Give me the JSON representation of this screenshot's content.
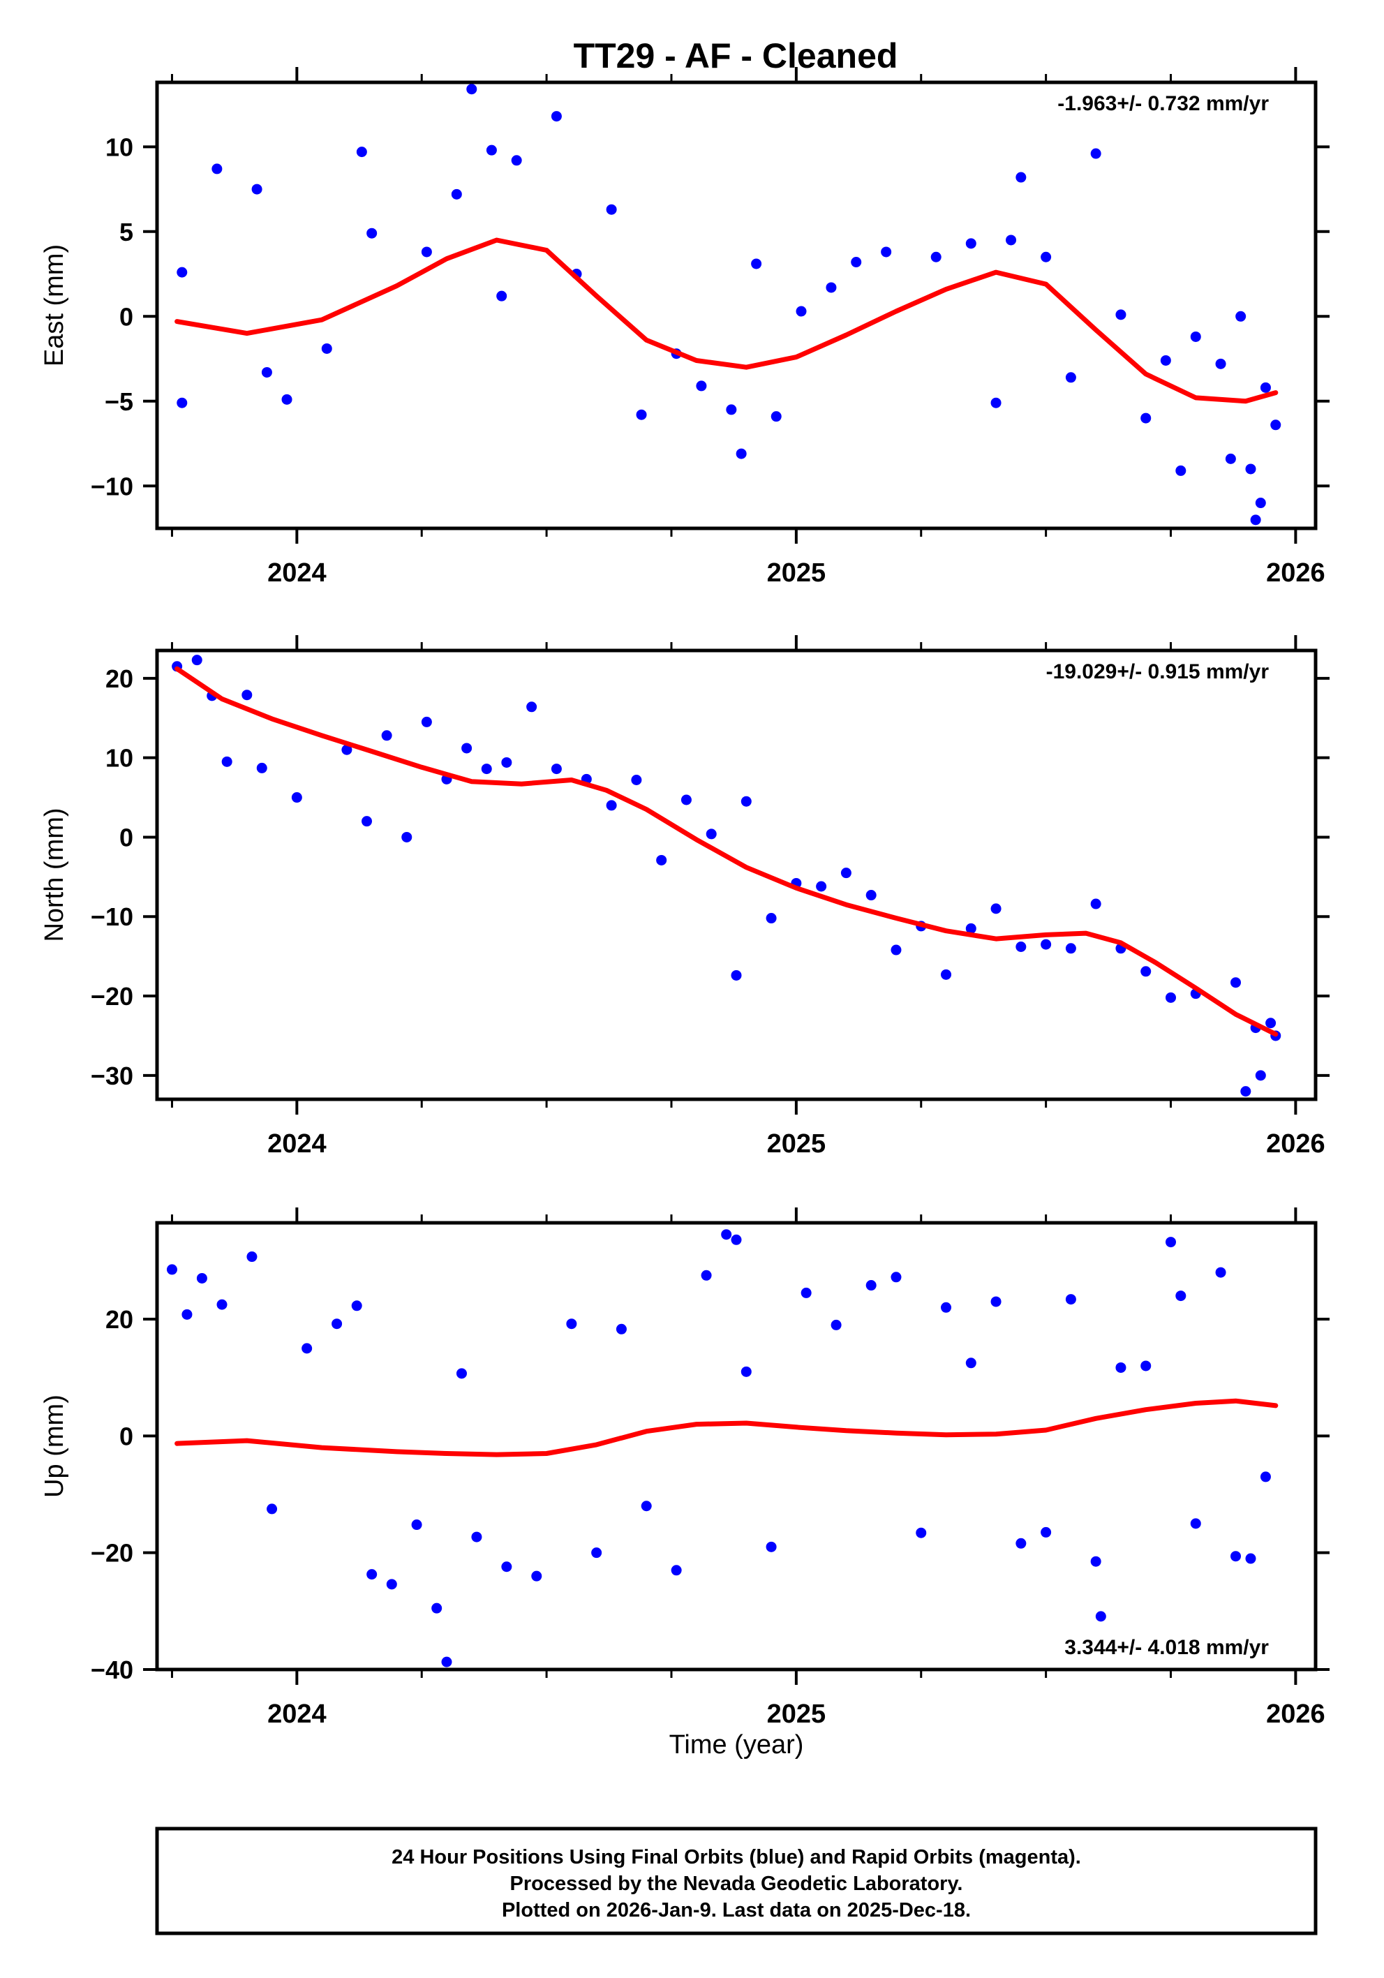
{
  "title": "TT29  - AF - Cleaned",
  "footer": {
    "line1": "24 Hour Positions Using Final Orbits (blue) and Rapid Orbits (magenta).",
    "line2": "Processed by the Nevada Geodetic Laboratory.",
    "line3": "Plotted on 2026-Jan-9. Last data on 2025-Dec-18."
  },
  "colors": {
    "points": "#0000ff",
    "fit": "#ff0000",
    "frame": "#000000"
  },
  "chart_data": [
    {
      "type": "scatter",
      "panel": "east",
      "ylabel": "East (mm)",
      "xlabel": "",
      "xlim": [
        2023.72,
        2026.04
      ],
      "ylim": [
        -12.5,
        13.8
      ],
      "xticks": [
        2024,
        2025,
        2026
      ],
      "xtick_labels": [
        "2024",
        "2025",
        "2026"
      ],
      "yticks": [
        -10,
        -5,
        0,
        5,
        10
      ],
      "ytick_labels": [
        "−10",
        "−5",
        "0",
        "5",
        "10"
      ],
      "rate_label": "-1.963+/- 0.732 mm/yr",
      "rate_position": "top-right",
      "series": [
        {
          "name": "Final Orbits",
          "style": "points",
          "x": [
            2023.77,
            2023.77,
            2023.84,
            2023.92,
            2023.94,
            2023.98,
            2024.06,
            2024.13,
            2024.15,
            2024.26,
            2024.32,
            2024.35,
            2024.39,
            2024.41,
            2024.44,
            2024.52,
            2024.56,
            2024.63,
            2024.69,
            2024.76,
            2024.81,
            2024.87,
            2024.89,
            2024.92,
            2024.96,
            2025.01,
            2025.07,
            2025.12,
            2025.18,
            2025.28,
            2025.35,
            2025.4,
            2025.43,
            2025.45,
            2025.5,
            2025.55,
            2025.6,
            2025.65,
            2025.7,
            2025.74,
            2025.77,
            2025.8,
            2025.85,
            2025.87,
            2025.89,
            2025.91,
            2025.92,
            2025.93,
            2025.94,
            2025.96
          ],
          "y": [
            2.6,
            -5.1,
            8.7,
            7.5,
            -3.3,
            -4.9,
            -1.9,
            9.7,
            4.9,
            3.8,
            7.2,
            13.4,
            9.8,
            1.2,
            9.2,
            11.8,
            2.5,
            6.3,
            -5.8,
            -2.2,
            -4.1,
            -5.5,
            -8.1,
            3.1,
            -5.9,
            0.3,
            1.7,
            3.2,
            3.8,
            3.5,
            4.3,
            -5.1,
            4.5,
            8.2,
            3.5,
            -3.6,
            9.6,
            0.1,
            -6.0,
            -2.6,
            -9.1,
            -1.2,
            -2.8,
            -8.4,
            0.0,
            -9.0,
            -12.0,
            -11.0,
            -4.2,
            -6.4
          ]
        },
        {
          "name": "Fit",
          "style": "line",
          "x": [
            2023.76,
            2023.9,
            2024.05,
            2024.2,
            2024.3,
            2024.4,
            2024.5,
            2024.6,
            2024.7,
            2024.8,
            2024.9,
            2025.0,
            2025.1,
            2025.2,
            2025.3,
            2025.4,
            2025.5,
            2025.6,
            2025.7,
            2025.8,
            2025.9,
            2025.96
          ],
          "y": [
            -0.3,
            -1.0,
            -0.2,
            1.8,
            3.4,
            4.5,
            3.9,
            1.2,
            -1.4,
            -2.6,
            -3.0,
            -2.4,
            -1.1,
            0.3,
            1.6,
            2.6,
            1.9,
            -0.8,
            -3.4,
            -4.8,
            -5.0,
            -4.5
          ]
        }
      ]
    },
    {
      "type": "scatter",
      "panel": "north",
      "ylabel": "North (mm)",
      "xlabel": "",
      "xlim": [
        2023.72,
        2026.04
      ],
      "ylim": [
        -33.0,
        23.5
      ],
      "xticks": [
        2024,
        2025,
        2026
      ],
      "xtick_labels": [
        "2024",
        "2025",
        "2026"
      ],
      "yticks": [
        -30,
        -20,
        -10,
        0,
        10,
        20
      ],
      "ytick_labels": [
        "−30",
        "−20",
        "−10",
        "0",
        "10",
        "20"
      ],
      "rate_label": "-19.029+/- 0.915 mm/yr",
      "rate_position": "top-right",
      "series": [
        {
          "name": "Final Orbits",
          "style": "points",
          "x": [
            2023.76,
            2023.8,
            2023.83,
            2023.86,
            2023.9,
            2023.93,
            2024.0,
            2024.1,
            2024.14,
            2024.18,
            2024.22,
            2024.26,
            2024.3,
            2024.34,
            2024.38,
            2024.42,
            2024.47,
            2024.52,
            2024.58,
            2024.63,
            2024.68,
            2024.73,
            2024.78,
            2024.83,
            2024.88,
            2024.9,
            2024.95,
            2025.0,
            2025.05,
            2025.1,
            2025.15,
            2025.2,
            2025.25,
            2025.3,
            2025.35,
            2025.4,
            2025.45,
            2025.5,
            2025.55,
            2025.6,
            2025.65,
            2025.7,
            2025.75,
            2025.8,
            2025.88,
            2025.9,
            2025.92,
            2025.93,
            2025.95,
            2025.96
          ],
          "y": [
            21.5,
            22.3,
            17.8,
            9.5,
            17.9,
            8.7,
            5.0,
            11.0,
            2.0,
            12.8,
            0.0,
            14.5,
            7.3,
            11.2,
            8.6,
            9.4,
            16.4,
            8.6,
            7.3,
            4.0,
            7.2,
            -2.9,
            4.7,
            0.4,
            -17.4,
            4.5,
            -10.2,
            -5.8,
            -6.2,
            -4.5,
            -7.3,
            -14.2,
            -11.2,
            -17.3,
            -11.5,
            -9.0,
            -13.8,
            -13.5,
            -14.0,
            -8.4,
            -14.0,
            -16.9,
            -20.2,
            -19.7,
            -18.3,
            -32.0,
            -24.0,
            -30.0,
            -23.4,
            -25.0
          ]
        },
        {
          "name": "Fit",
          "style": "line",
          "x": [
            2023.76,
            2023.85,
            2023.95,
            2024.05,
            2024.15,
            2024.25,
            2024.35,
            2024.45,
            2024.55,
            2024.62,
            2024.7,
            2024.8,
            2024.9,
            2025.0,
            2025.1,
            2025.2,
            2025.3,
            2025.4,
            2025.5,
            2025.58,
            2025.65,
            2025.72,
            2025.8,
            2025.88,
            2025.96
          ],
          "y": [
            21.2,
            17.4,
            14.9,
            12.8,
            10.8,
            8.8,
            7.0,
            6.7,
            7.2,
            5.9,
            3.5,
            -0.3,
            -3.8,
            -6.4,
            -8.5,
            -10.2,
            -11.8,
            -12.8,
            -12.3,
            -12.1,
            -13.3,
            -15.8,
            -19.0,
            -22.3,
            -24.8
          ]
        }
      ]
    },
    {
      "type": "scatter",
      "panel": "up",
      "ylabel": "Up (mm)",
      "xlabel": "Time (year)",
      "xlim": [
        2023.72,
        2026.04
      ],
      "ylim": [
        -40.0,
        36.5
      ],
      "xticks": [
        2024,
        2025,
        2026
      ],
      "xtick_labels": [
        "2024",
        "2025",
        "2026"
      ],
      "yticks": [
        -40,
        -20,
        0,
        20
      ],
      "ytick_labels": [
        "−40",
        "−20",
        "0",
        "20"
      ],
      "rate_label": "3.344+/- 4.018 mm/yr",
      "rate_position": "bottom-right",
      "series": [
        {
          "name": "Final Orbits",
          "style": "points",
          "x": [
            2023.75,
            2023.78,
            2023.81,
            2023.85,
            2023.91,
            2023.95,
            2024.02,
            2024.08,
            2024.12,
            2024.15,
            2024.19,
            2024.24,
            2024.28,
            2024.3,
            2024.33,
            2024.36,
            2024.42,
            2024.48,
            2024.55,
            2024.6,
            2024.65,
            2024.7,
            2024.76,
            2024.82,
            2024.86,
            2024.88,
            2024.9,
            2024.95,
            2025.02,
            2025.08,
            2025.15,
            2025.2,
            2025.25,
            2025.3,
            2025.35,
            2025.4,
            2025.45,
            2025.5,
            2025.55,
            2025.6,
            2025.61,
            2025.65,
            2025.7,
            2025.75,
            2025.77,
            2025.8,
            2025.85,
            2025.88,
            2025.91,
            2025.94
          ],
          "y": [
            28.5,
            20.8,
            27.0,
            22.5,
            30.7,
            -12.5,
            15.0,
            19.2,
            22.3,
            -23.7,
            -25.4,
            -15.2,
            -29.5,
            -38.7,
            10.7,
            -17.3,
            -22.4,
            -24.0,
            19.2,
            -20.0,
            18.3,
            -12.0,
            -23.0,
            27.5,
            34.5,
            33.6,
            11.0,
            -19.0,
            24.5,
            19.0,
            25.8,
            27.2,
            -16.6,
            22.0,
            12.5,
            23.0,
            -18.4,
            -16.5,
            23.4,
            -21.5,
            -30.9,
            11.7,
            12.0,
            33.2,
            24.0,
            -15.0,
            28.0,
            -20.6,
            -21.0,
            -7.0
          ]
        },
        {
          "name": "Fit",
          "style": "line",
          "x": [
            2023.76,
            2023.9,
            2024.05,
            2024.2,
            2024.3,
            2024.4,
            2024.5,
            2024.6,
            2024.7,
            2024.8,
            2024.9,
            2025.0,
            2025.1,
            2025.2,
            2025.3,
            2025.4,
            2025.5,
            2025.6,
            2025.7,
            2025.8,
            2025.88,
            2025.96
          ],
          "y": [
            -1.3,
            -0.8,
            -2.0,
            -2.7,
            -3.0,
            -3.2,
            -3.0,
            -1.5,
            0.8,
            2.0,
            2.2,
            1.5,
            0.9,
            0.5,
            0.2,
            0.3,
            1.0,
            3.0,
            4.5,
            5.6,
            6.0,
            5.2
          ]
        }
      ]
    }
  ]
}
